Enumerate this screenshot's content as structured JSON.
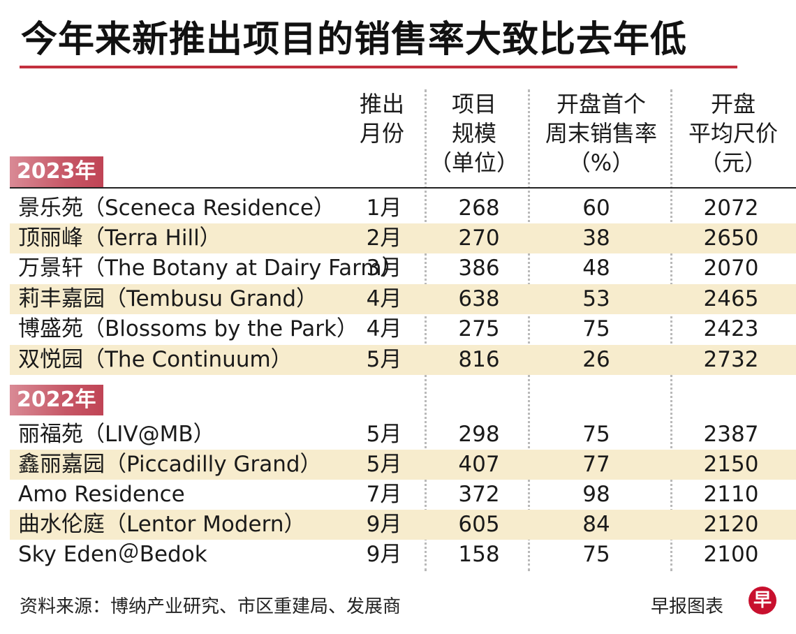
{
  "title": "今年来新推出项目的销售率大致比去年低",
  "headers": {
    "month": [
      "推出",
      "月份"
    ],
    "units": [
      "项目",
      "规模",
      "（单位）"
    ],
    "rate": [
      "开盘首个",
      "周末销售率",
      "（%）"
    ],
    "price": [
      "开盘",
      "平均尺价",
      "（元）"
    ]
  },
  "sections": [
    {
      "year": "2023年",
      "rows": [
        {
          "name": "景乐苑（Sceneca Residence）",
          "month": "1月",
          "units": "268",
          "rate": "60",
          "price": "2072"
        },
        {
          "name": "顶丽峰（Terra Hill）",
          "month": "2月",
          "units": "270",
          "rate": "38",
          "price": "2650"
        },
        {
          "name": "万景轩（The Botany at Dairy Farm）",
          "month": "3月",
          "units": "386",
          "rate": "48",
          "price": "2070"
        },
        {
          "name": "莉丰嘉园（Tembusu Grand）",
          "month": "4月",
          "units": "638",
          "rate": "53",
          "price": "2465"
        },
        {
          "name": "博盛苑（Blossoms by the Park）",
          "month": "4月",
          "units": "275",
          "rate": "75",
          "price": "2423"
        },
        {
          "name": "双悦园（The Continuum）",
          "month": "5月",
          "units": "816",
          "rate": "26",
          "price": "2732"
        }
      ]
    },
    {
      "year": "2022年",
      "rows": [
        {
          "name": "丽福苑（LIV@MB）",
          "month": "5月",
          "units": "298",
          "rate": "75",
          "price": "2387"
        },
        {
          "name": "鑫丽嘉园（Piccadilly Grand）",
          "month": "5月",
          "units": "407",
          "rate": "77",
          "price": "2150"
        },
        {
          "name": "Amo Residence",
          "month": "7月",
          "units": "372",
          "rate": "98",
          "price": "2110"
        },
        {
          "name": "曲水伦庭（Lentor Modern）",
          "month": "9月",
          "units": "605",
          "rate": "84",
          "price": "2120"
        },
        {
          "name": "Sky Eden＠Bedok",
          "month": "9月",
          "units": "158",
          "rate": "75",
          "price": "2100"
        }
      ]
    }
  ],
  "footer": {
    "source": "资料来源：博纳产业研究、市区重建局、发展商",
    "credit": "早报图表",
    "logo_char": "早"
  },
  "colors": {
    "accent_red": "#c3303e",
    "row_highlight": "#f7eccd",
    "badge": "#c65766"
  }
}
